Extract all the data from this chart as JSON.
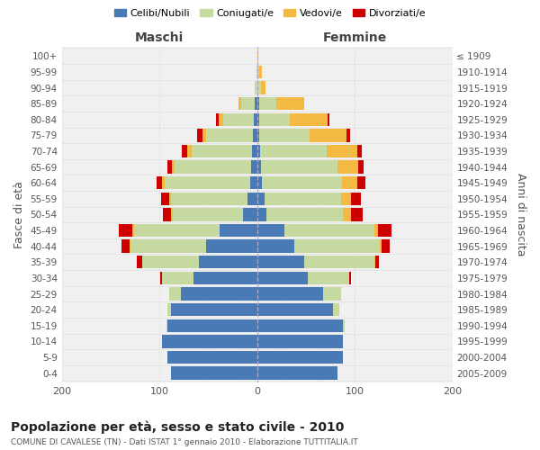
{
  "age_groups": [
    "0-4",
    "5-9",
    "10-14",
    "15-19",
    "20-24",
    "25-29",
    "30-34",
    "35-39",
    "40-44",
    "45-49",
    "50-54",
    "55-59",
    "60-64",
    "65-69",
    "70-74",
    "75-79",
    "80-84",
    "85-89",
    "90-94",
    "95-99",
    "100+"
  ],
  "birth_years": [
    "2005-2009",
    "2000-2004",
    "1995-1999",
    "1990-1994",
    "1985-1989",
    "1980-1984",
    "1975-1979",
    "1970-1974",
    "1965-1969",
    "1960-1964",
    "1955-1959",
    "1950-1954",
    "1945-1949",
    "1940-1944",
    "1935-1939",
    "1930-1934",
    "1925-1929",
    "1920-1924",
    "1915-1919",
    "1910-1914",
    "≤ 1909"
  ],
  "males": {
    "celibe": [
      88,
      92,
      97,
      92,
      88,
      78,
      65,
      60,
      52,
      38,
      14,
      10,
      7,
      6,
      5,
      4,
      3,
      2,
      0,
      0,
      0
    ],
    "coniugato": [
      0,
      0,
      0,
      1,
      4,
      12,
      32,
      58,
      78,
      88,
      72,
      78,
      88,
      78,
      62,
      48,
      32,
      14,
      2,
      1,
      0
    ],
    "vedovo": [
      0,
      0,
      0,
      0,
      0,
      0,
      0,
      0,
      1,
      2,
      2,
      2,
      2,
      3,
      5,
      4,
      4,
      3,
      0,
      0,
      0
    ],
    "divorziato": [
      0,
      0,
      0,
      0,
      0,
      0,
      2,
      5,
      8,
      14,
      8,
      8,
      6,
      5,
      5,
      5,
      3,
      0,
      0,
      0,
      0
    ]
  },
  "females": {
    "nubile": [
      82,
      88,
      88,
      88,
      78,
      68,
      52,
      48,
      38,
      28,
      10,
      8,
      5,
      4,
      3,
      2,
      2,
      2,
      0,
      0,
      0
    ],
    "coniugata": [
      0,
      0,
      0,
      2,
      6,
      18,
      42,
      72,
      88,
      92,
      78,
      78,
      82,
      78,
      68,
      52,
      32,
      18,
      4,
      2,
      0
    ],
    "vedova": [
      0,
      0,
      0,
      0,
      0,
      0,
      0,
      1,
      2,
      4,
      8,
      10,
      16,
      22,
      32,
      38,
      38,
      28,
      5,
      3,
      1
    ],
    "divorziata": [
      0,
      0,
      0,
      0,
      0,
      0,
      2,
      4,
      8,
      14,
      12,
      10,
      8,
      5,
      4,
      3,
      2,
      0,
      0,
      0,
      0
    ]
  },
  "colors": {
    "celibe_nubile": "#4a7ab5",
    "coniugato_a": "#c5d9a0",
    "vedovo_a": "#f4b942",
    "divorziato_a": "#cc0000"
  },
  "title": "Popolazione per età, sesso e stato civile - 2010",
  "subtitle": "COMUNE DI CAVALESE (TN) - Dati ISTAT 1° gennaio 2010 - Elaborazione TUTTITALIA.IT",
  "xlabel_left": "Maschi",
  "xlabel_right": "Femmine",
  "ylabel_left": "Fasce di età",
  "ylabel_right": "Anni di nascita",
  "xlim": 200,
  "background_color": "#ffffff",
  "grid_color": "#cccccc",
  "legend_labels": [
    "Celibi/Nubili",
    "Coniugati/e",
    "Vedovi/e",
    "Divorziati/e"
  ]
}
